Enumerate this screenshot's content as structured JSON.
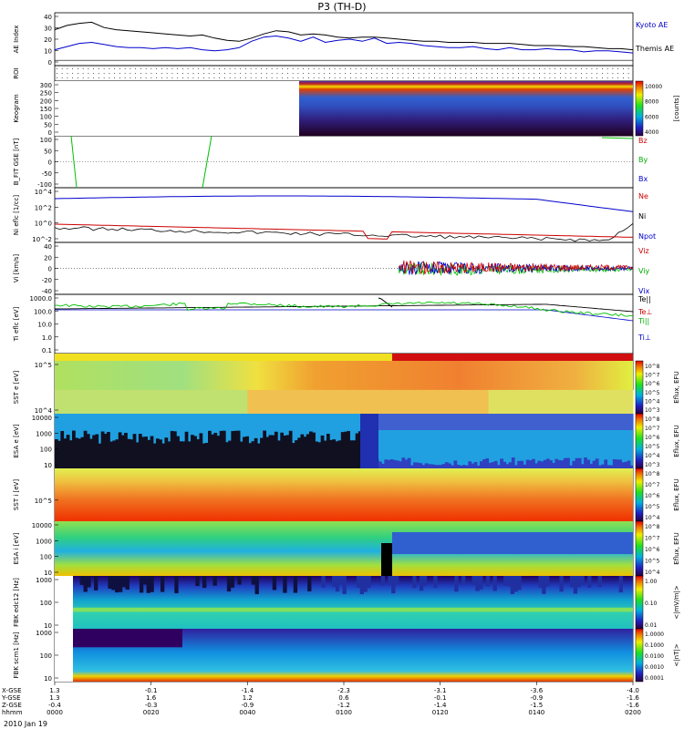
{
  "title": "P3 (TH-D)",
  "date_label": "2010 Jan 19",
  "chart_data": [
    {
      "type": "line",
      "panel": "ae",
      "ylabel": "AE Index",
      "yticks": [
        "40",
        "30",
        "20",
        "10",
        "0"
      ],
      "ylim": [
        -5,
        45
      ],
      "legend": [
        "Kyoto AE",
        "Themis AE"
      ],
      "series": [
        {
          "name": "Kyoto AE",
          "color": "#000000",
          "values": [
            29,
            33,
            35,
            36,
            31,
            29,
            28,
            27,
            26,
            25,
            24,
            23,
            24,
            21,
            19,
            18,
            21,
            25,
            28,
            27,
            24,
            25,
            24,
            22,
            21,
            22,
            22,
            21,
            20,
            19,
            18,
            18,
            17,
            17,
            17,
            16,
            16,
            16,
            15,
            14,
            14,
            14,
            13,
            13,
            12,
            11,
            11,
            10
          ]
        },
        {
          "name": "Themis AE",
          "color": "#0000cc",
          "values": [
            10,
            13,
            16,
            17,
            15,
            13,
            12,
            12,
            11,
            12,
            11,
            12,
            10,
            9,
            10,
            12,
            18,
            22,
            23,
            21,
            18,
            22,
            17,
            19,
            20,
            18,
            21,
            16,
            17,
            16,
            14,
            13,
            12,
            12,
            13,
            11,
            10,
            12,
            10,
            10,
            11,
            10,
            10,
            8,
            9,
            9,
            8,
            7
          ]
        }
      ]
    },
    {
      "type": "scatter",
      "panel": "roi",
      "ylabel": "ROI"
    },
    {
      "type": "heatmap",
      "panel": "keogram",
      "ylabel": "Keogram",
      "yticks": [
        "300",
        "250",
        "200",
        "150",
        "100",
        "50",
        "0"
      ],
      "colorbar": {
        "ticks": [
          "10000",
          "8000",
          "6000",
          "4000"
        ],
        "label": "[counts]"
      }
    },
    {
      "type": "line",
      "panel": "bfit",
      "ylabel": "B_FIT GSE [nT]",
      "yticks": [
        "100",
        "50",
        "0",
        "-50",
        "-100"
      ],
      "ylim": [
        -120,
        110
      ],
      "legend": [
        {
          "label": "Bz",
          "color": "#cc0000"
        },
        {
          "label": "By",
          "color": "#00aa00"
        },
        {
          "label": "Bx",
          "color": "#0000cc"
        }
      ]
    },
    {
      "type": "line",
      "panel": "ni",
      "ylabel": "Ni eflc [1/cc]",
      "yticks": [
        "10^4",
        "10^2",
        "10^0",
        "10^-2"
      ],
      "legend": [
        {
          "label": "Ne",
          "color": "#cc0000"
        },
        {
          "label": "Ni",
          "color": "#000000"
        },
        {
          "label": "Npot",
          "color": "#0000cc"
        }
      ]
    },
    {
      "type": "line",
      "panel": "vi",
      "ylabel": "Vi [km/s]",
      "yticks": [
        "40",
        "20",
        "0",
        "-20",
        "-40"
      ],
      "ylim": [
        -50,
        50
      ],
      "legend": [
        {
          "label": "Viz",
          "color": "#cc0000"
        },
        {
          "label": "Viy",
          "color": "#00aa00"
        },
        {
          "label": "Vix",
          "color": "#0000cc"
        }
      ]
    },
    {
      "type": "line",
      "panel": "ti",
      "ylabel": "Ti eflc [eV]",
      "yticks": [
        "1000.0",
        "100.0",
        "10.0",
        "1.0",
        "0.1"
      ],
      "legend": [
        {
          "label": "Te||",
          "color": "#000000"
        },
        {
          "label": "Te⊥",
          "color": "#cc0000"
        },
        {
          "label": "Ti||",
          "color": "#00aa00"
        },
        {
          "label": "Ti⊥",
          "color": "#0000cc"
        }
      ]
    },
    {
      "type": "heatmap",
      "panel": "sst_e",
      "ylabel": "SST e [eV]",
      "yticks": [
        "10^5",
        "10^4"
      ],
      "colorbar": {
        "ticks": [
          "10^8",
          "10^7",
          "10^6",
          "10^5",
          "10^4",
          "10^3"
        ],
        "label": "Eflux, EFU"
      }
    },
    {
      "type": "heatmap",
      "panel": "esa_e",
      "ylabel": "ESA e [eV]",
      "yticks": [
        "10000",
        "1000",
        "100",
        "10"
      ],
      "colorbar": {
        "ticks": [
          "10^8",
          "10^7",
          "10^6",
          "10^5",
          "10^4",
          "10^3"
        ],
        "label": "Eflux, EFU"
      }
    },
    {
      "type": "heatmap",
      "panel": "sst_i",
      "ylabel": "SST i [eV]",
      "yticks": [
        "10^5"
      ],
      "colorbar": {
        "ticks": [
          "10^8",
          "10^7",
          "10^6",
          "10^5",
          "10^4"
        ],
        "label": "Eflux, EFU"
      }
    },
    {
      "type": "heatmap",
      "panel": "esa_i",
      "ylabel": "ESA i [eV]",
      "yticks": [
        "10000",
        "1000",
        "100",
        "10"
      ],
      "colorbar": {
        "ticks": [
          "10^8",
          "10^7",
          "10^6",
          "10^5",
          "10^4"
        ],
        "label": "Eflux, EFU"
      }
    },
    {
      "type": "heatmap",
      "panel": "fbk_e",
      "ylabel": "FBK edc12 [Hz]",
      "yticks": [
        "1000",
        "100",
        "10"
      ],
      "colorbar": {
        "ticks": [
          "1.00",
          "0.10",
          "0.01"
        ],
        "label": "<|mV/m|>"
      }
    },
    {
      "type": "heatmap",
      "panel": "fbk_b",
      "ylabel": "FBK scm1 [Hz]",
      "yticks": [
        "1000",
        "100",
        "10"
      ],
      "colorbar": {
        "ticks": [
          "1.0000",
          "0.1000",
          "0.0100",
          "0.0010",
          "0.0001"
        ],
        "label": "<|nT|>"
      }
    }
  ],
  "time_axis": {
    "row_labels": [
      "X-GSE",
      "Y-GSE",
      "Z-GSE",
      "hhmm"
    ],
    "ticks": [
      {
        "x": "1.3",
        "y": "1.3",
        "z": "-0.4",
        "t": "0000"
      },
      {
        "x": "-0.1",
        "y": "1.6",
        "z": "-0.3",
        "t": "0020"
      },
      {
        "x": "-1.4",
        "y": "1.2",
        "z": "-0.9",
        "t": "0040"
      },
      {
        "x": "-2.3",
        "y": "0.6",
        "z": "-1.2",
        "t": "0100"
      },
      {
        "x": "-3.1",
        "y": "-0.1",
        "z": "-1.4",
        "t": "0120"
      },
      {
        "x": "-3.6",
        "y": "-0.9",
        "z": "-1.5",
        "t": "0140"
      },
      {
        "x": "-4.0",
        "y": "-1.6",
        "z": "-1.6",
        "t": "0200"
      }
    ]
  }
}
